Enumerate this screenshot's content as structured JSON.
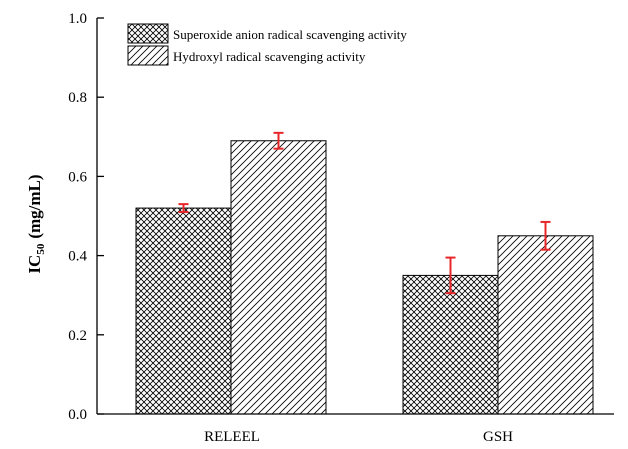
{
  "chart_data": {
    "type": "bar",
    "categories": [
      "RELEEL",
      "GSH"
    ],
    "series": [
      {
        "name": "Superoxide anion radical scavenging activity",
        "values": [
          0.52,
          0.35
        ],
        "errors": [
          0.01,
          0.045
        ],
        "pattern": "crosshatch"
      },
      {
        "name": "Hydroxyl radical scavenging activity",
        "values": [
          0.69,
          0.45
        ],
        "errors": [
          0.02,
          0.035
        ],
        "pattern": "diagonal"
      }
    ],
    "ylabel": {
      "main": "IC",
      "sub": "50",
      "unit": "(mg/mL)"
    },
    "ylim": [
      0.0,
      1.0
    ],
    "yticks": [
      "0.0",
      "0.2",
      "0.4",
      "0.6",
      "0.8",
      "1.0"
    ],
    "legend_position": "top-left",
    "grid": false,
    "error_bar_color": "#e8262a"
  }
}
